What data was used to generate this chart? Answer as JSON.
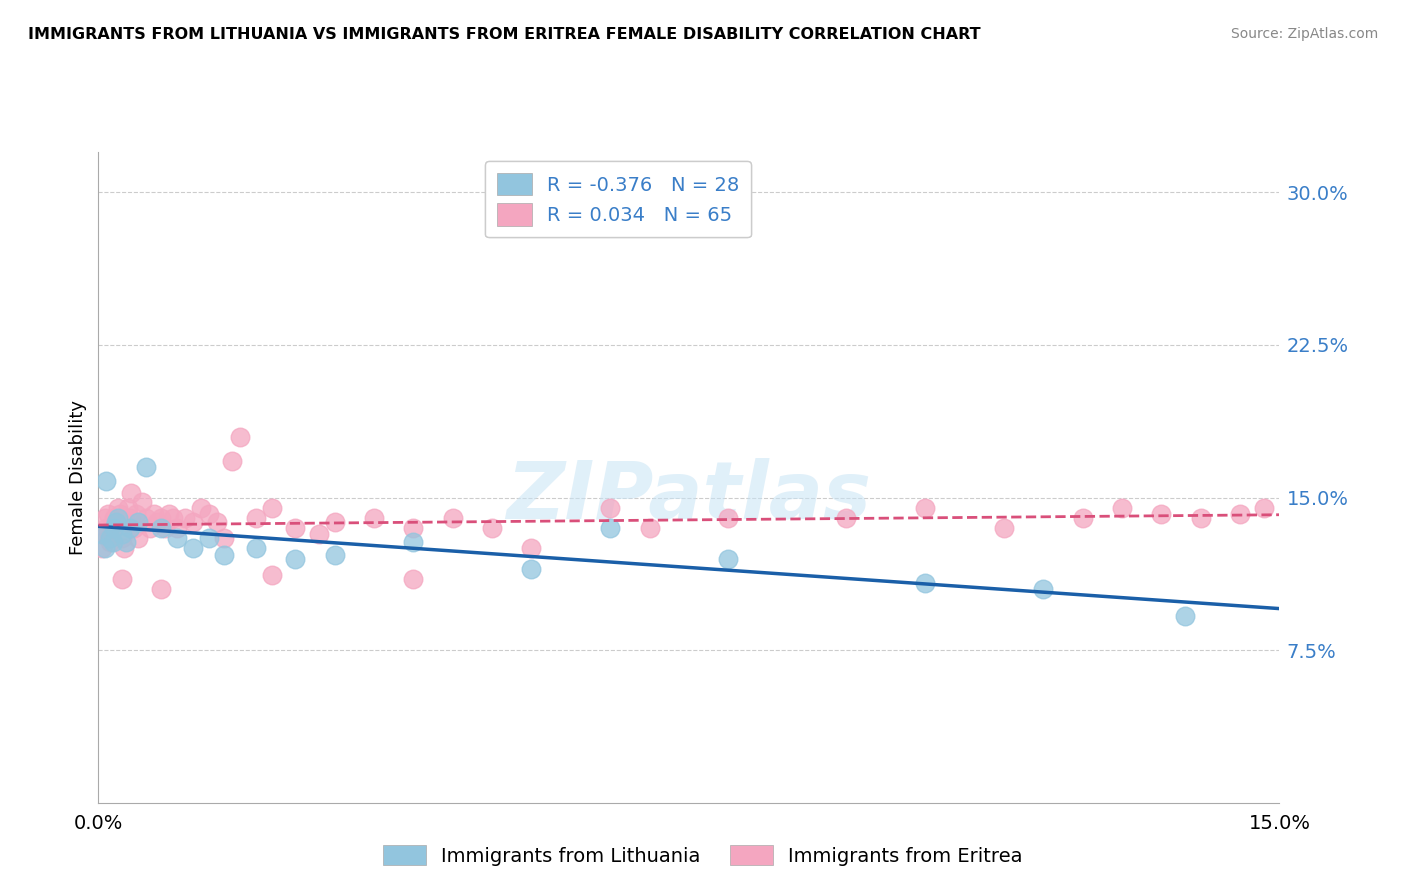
{
  "title": "IMMIGRANTS FROM LITHUANIA VS IMMIGRANTS FROM ERITREA FEMALE DISABILITY CORRELATION CHART",
  "source": "Source: ZipAtlas.com",
  "ylabel": "Female Disability",
  "xlim": [
    0.0,
    15.0
  ],
  "ylim": [
    0.0,
    32.0
  ],
  "yticks": [
    7.5,
    15.0,
    22.5,
    30.0
  ],
  "ytick_labels": [
    "7.5%",
    "15.0%",
    "22.5%",
    "30.0%"
  ],
  "xtick_labels": [
    "0.0%",
    "15.0%"
  ],
  "lithuania_color": "#92c5de",
  "eritrea_color": "#f4a6c0",
  "lithuania_line_color": "#1a5fa8",
  "eritrea_line_color": "#d94f7a",
  "lithuania_R": -0.376,
  "lithuania_N": 28,
  "eritrea_R": 0.034,
  "eritrea_N": 65,
  "watermark": "ZIPatlas",
  "background_color": "#ffffff",
  "grid_color": "#cccccc",
  "lithuania_scatter_x": [
    0.05,
    0.08,
    0.1,
    0.15,
    0.18,
    0.2,
    0.22,
    0.25,
    0.3,
    0.35,
    0.4,
    0.5,
    0.6,
    0.8,
    1.0,
    1.2,
    1.4,
    1.6,
    2.0,
    2.5,
    3.0,
    4.0,
    5.5,
    6.5,
    8.0,
    10.5,
    12.0,
    13.8
  ],
  "lithuania_scatter_y": [
    13.2,
    12.5,
    15.8,
    13.0,
    12.8,
    13.5,
    13.8,
    14.0,
    13.2,
    12.8,
    13.5,
    13.8,
    16.5,
    13.5,
    13.0,
    12.5,
    13.0,
    12.2,
    12.5,
    12.0,
    12.2,
    12.8,
    11.5,
    13.5,
    12.0,
    10.8,
    10.5,
    9.2
  ],
  "eritrea_scatter_x": [
    0.05,
    0.07,
    0.08,
    0.1,
    0.12,
    0.14,
    0.15,
    0.18,
    0.2,
    0.22,
    0.25,
    0.28,
    0.3,
    0.32,
    0.35,
    0.38,
    0.4,
    0.42,
    0.45,
    0.48,
    0.5,
    0.55,
    0.6,
    0.65,
    0.7,
    0.75,
    0.8,
    0.85,
    0.9,
    0.95,
    1.0,
    1.1,
    1.2,
    1.3,
    1.4,
    1.5,
    1.6,
    1.7,
    1.8,
    2.0,
    2.2,
    2.5,
    2.8,
    3.0,
    3.5,
    4.0,
    4.5,
    5.0,
    5.5,
    6.5,
    7.0,
    8.0,
    9.5,
    10.5,
    11.5,
    12.5,
    13.0,
    13.5,
    14.0,
    14.5,
    14.8,
    4.0,
    0.3,
    0.8,
    2.2
  ],
  "eritrea_scatter_y": [
    12.5,
    13.2,
    14.0,
    13.5,
    14.2,
    13.0,
    12.8,
    13.5,
    14.0,
    13.8,
    14.5,
    14.2,
    13.0,
    12.5,
    13.8,
    14.5,
    14.0,
    15.2,
    13.5,
    14.2,
    13.0,
    14.8,
    14.0,
    13.5,
    14.2,
    13.8,
    14.0,
    13.5,
    14.2,
    14.0,
    13.5,
    14.0,
    13.8,
    14.5,
    14.2,
    13.8,
    13.0,
    16.8,
    18.0,
    14.0,
    14.5,
    13.5,
    13.2,
    13.8,
    14.0,
    13.5,
    14.0,
    13.5,
    12.5,
    14.5,
    13.5,
    14.0,
    14.0,
    14.5,
    13.5,
    14.0,
    14.5,
    14.2,
    14.0,
    14.2,
    14.5,
    11.0,
    11.0,
    10.5,
    11.2
  ]
}
